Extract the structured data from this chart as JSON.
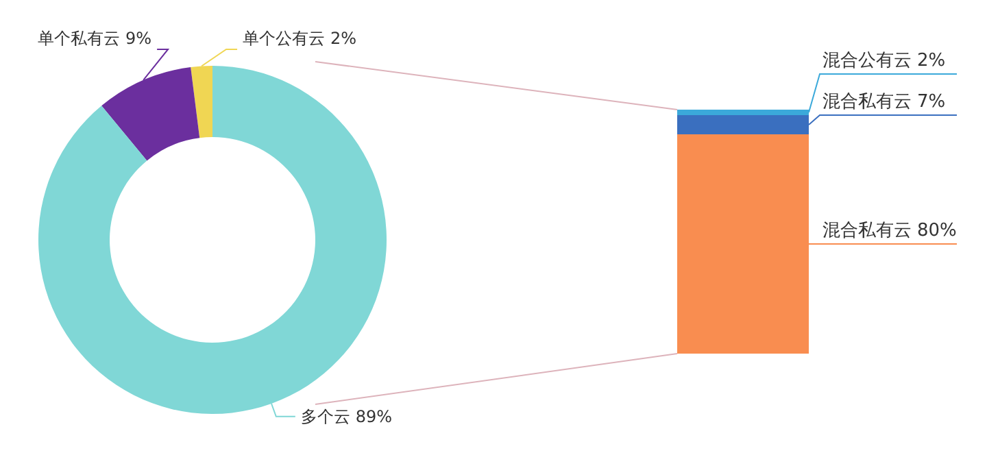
{
  "chart_data": [
    {
      "type": "donut",
      "categories": [
        "单个公有云",
        "单个私有云",
        "多个云"
      ],
      "values": [
        2,
        9,
        89
      ],
      "colors": [
        "#f0d653",
        "#6b2f9e",
        "#80d7d6"
      ],
      "value_labels": [
        "2%",
        "9%",
        "89%"
      ]
    },
    {
      "type": "bar",
      "stacked": true,
      "categories": [
        null
      ],
      "series": [
        {
          "name": "混合私有云",
          "color": "#f98d50",
          "values": [
            80
          ],
          "value_labels": [
            "80%"
          ]
        },
        {
          "name": "混合私有云",
          "color": "#3a6fbf",
          "values": [
            7
          ],
          "value_labels": [
            "7%"
          ]
        },
        {
          "name": "混合公有云",
          "color": "#3ba9da",
          "values": [
            2
          ],
          "value_labels": [
            "2%"
          ]
        }
      ]
    }
  ]
}
